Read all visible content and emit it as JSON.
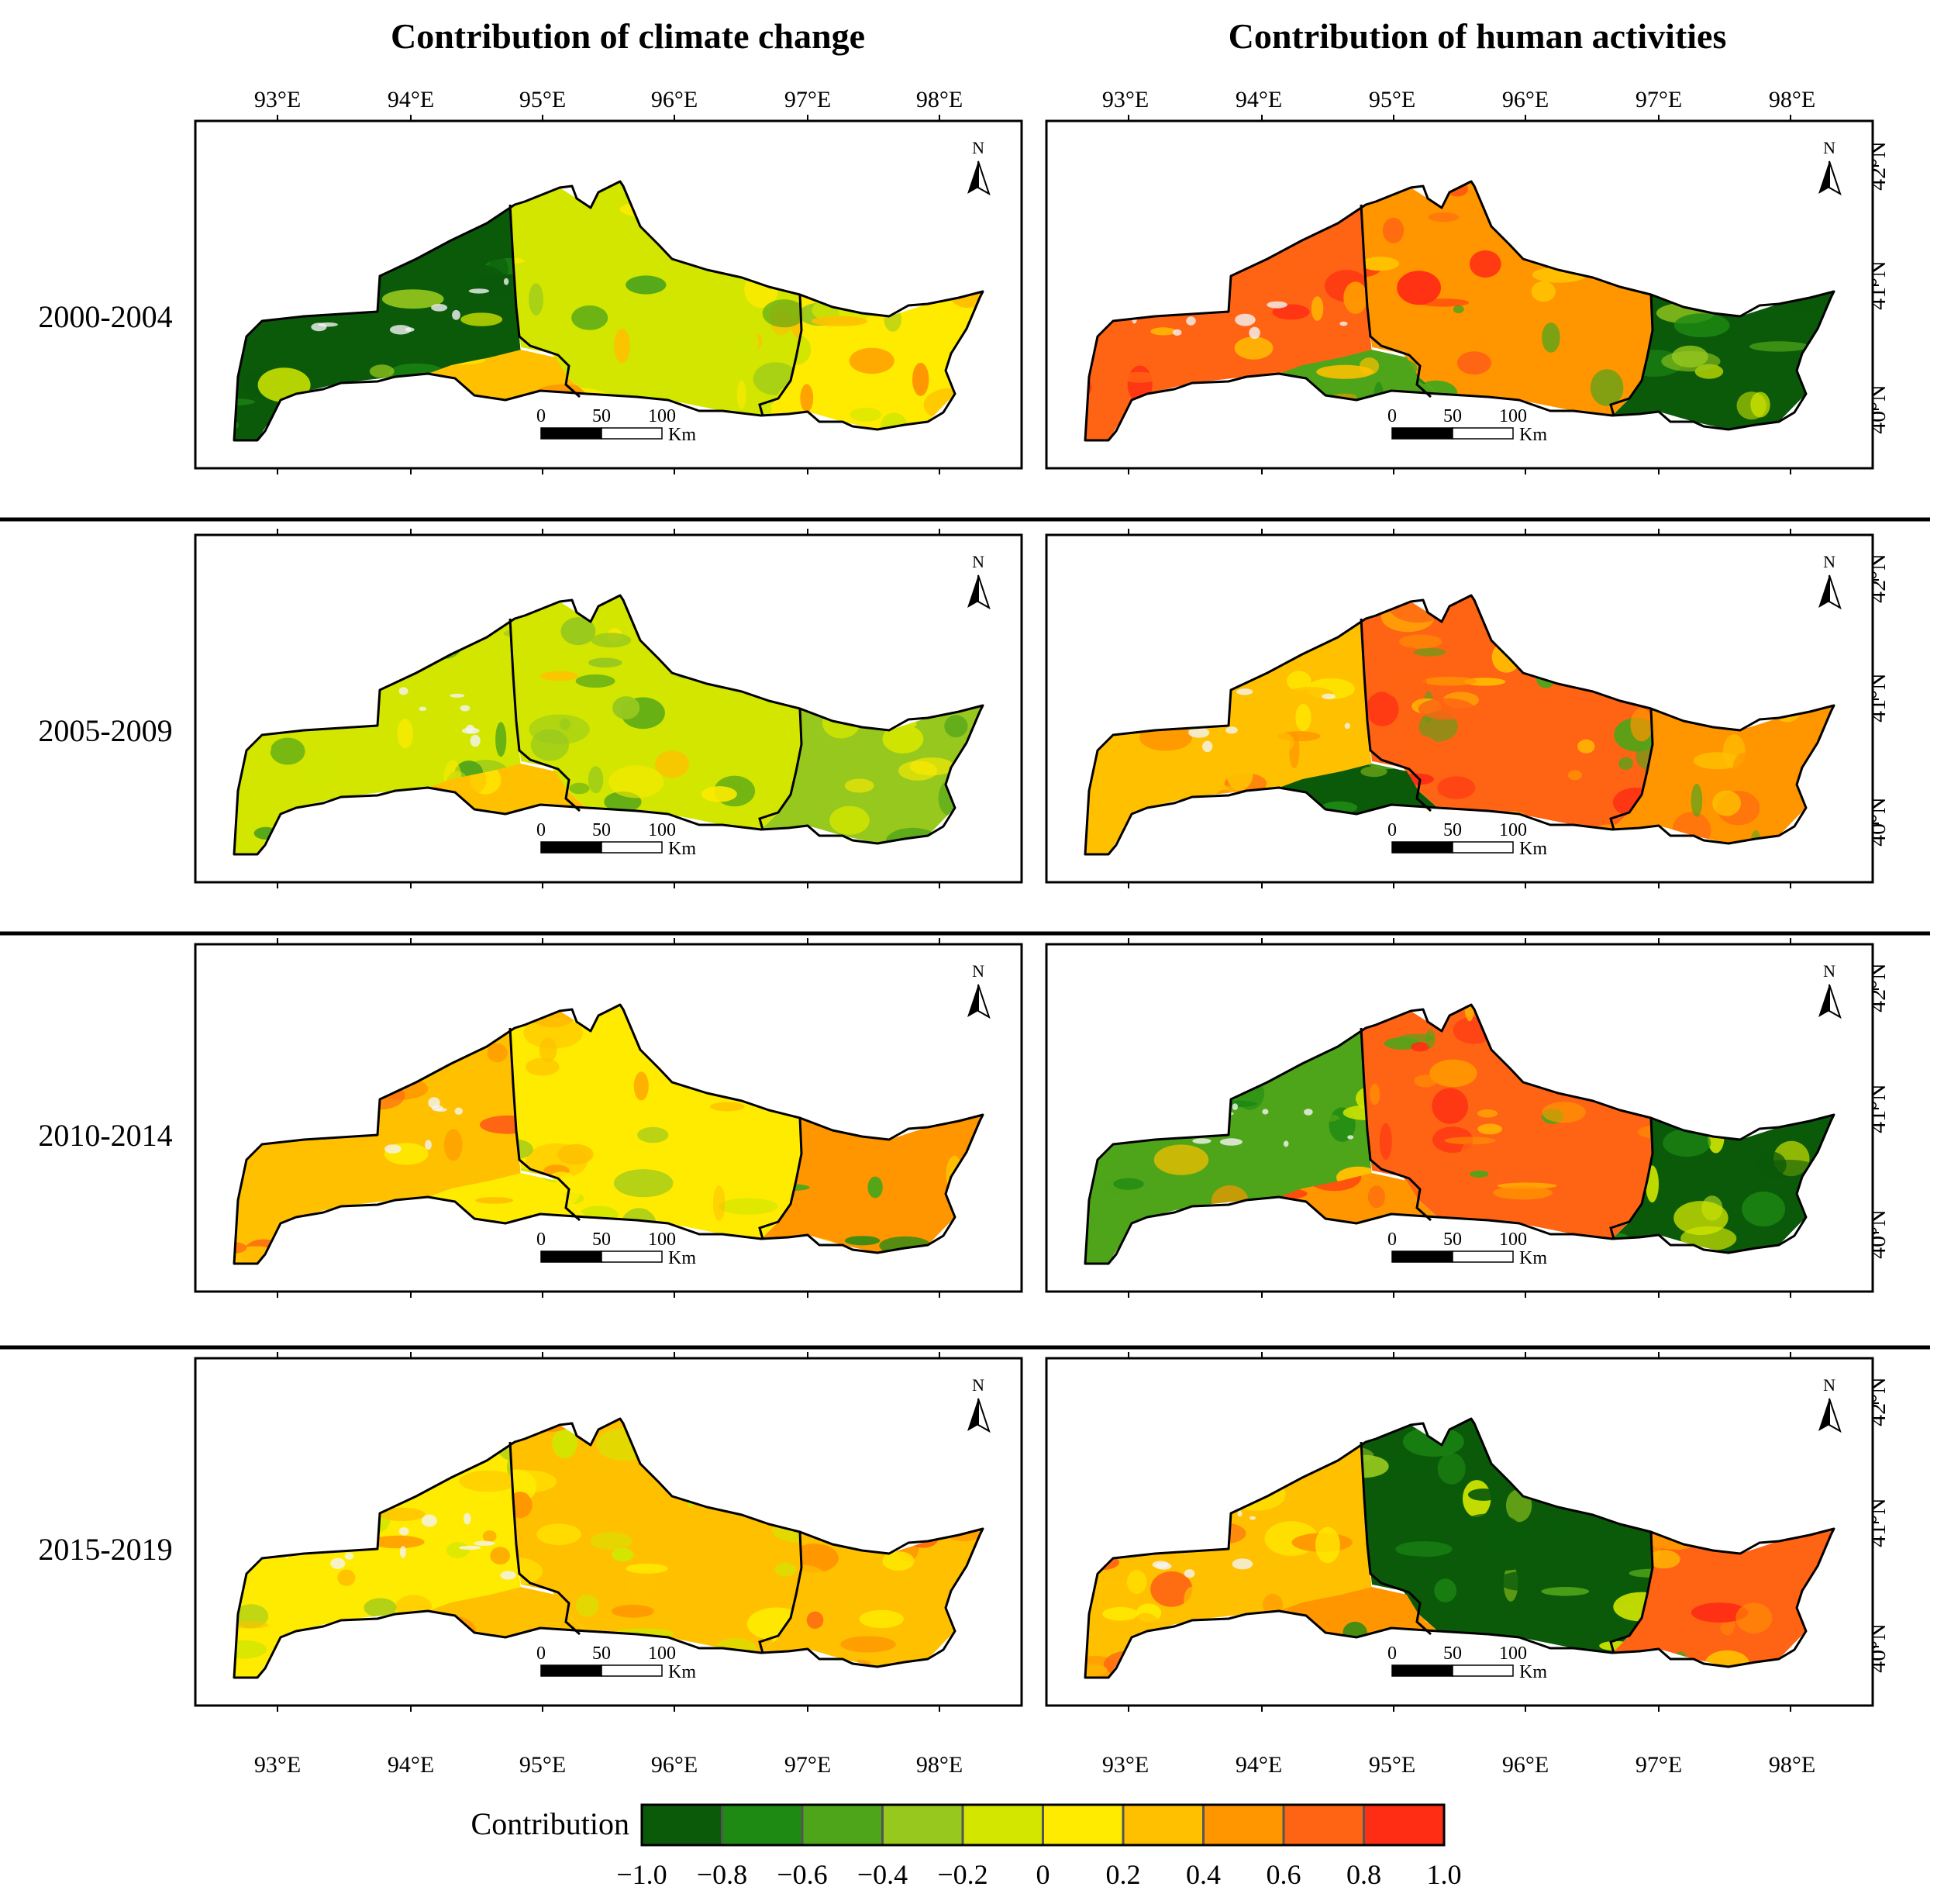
{
  "columns": [
    "Contribution of climate change",
    "Contribution of human activities"
  ],
  "periods": [
    "2000-2004",
    "2005-2009",
    "2010-2014",
    "2015-2019"
  ],
  "lon_labels": [
    "93°E",
    "94°E",
    "95°E",
    "96°E",
    "97°E",
    "98°E"
  ],
  "lat_labels": [
    "42°N",
    "41°N",
    "40°N"
  ],
  "north_label": "N",
  "scalebar": {
    "ticks": [
      "0",
      "50",
      "100"
    ],
    "unit": "Km"
  },
  "legend": {
    "title": "Contribution",
    "ticks": [
      "−1.0",
      "−0.8",
      "−0.6",
      "−0.4",
      "−0.2",
      "0",
      "0.2",
      "0.4",
      "0.6",
      "0.8",
      "1.0"
    ],
    "colors": [
      "#0a5a0a",
      "#1e8a14",
      "#4fa519",
      "#96c81e",
      "#d2e600",
      "#ffeb00",
      "#ffc000",
      "#ff9600",
      "#ff6414",
      "#ff2d14"
    ]
  },
  "palette": {
    "dark_green": "#0a5a0a",
    "green": "#1e8a14",
    "mid_green": "#4fa519",
    "light_green": "#96c81e",
    "yellow_green": "#d2e600",
    "yellow": "#ffeb00",
    "light_orange": "#ffc000",
    "orange": "#ff9600",
    "dark_orange": "#ff6414",
    "red": "#ff2d14",
    "boundary": "#000000"
  }
}
